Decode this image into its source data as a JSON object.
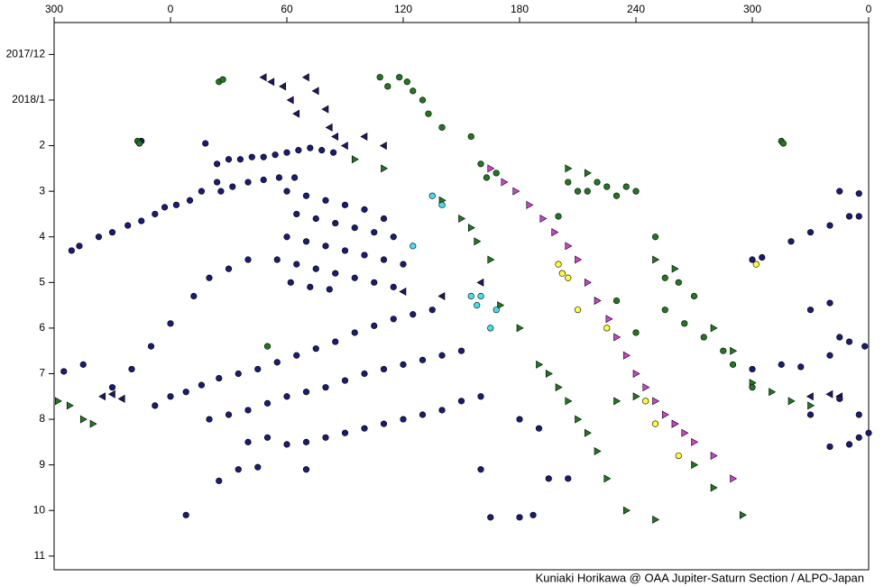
{
  "chart_data": {
    "type": "scatter",
    "credit": "Kuniaki Horikawa @ OAA Jupiter-Saturn Section / ALPO-Japan",
    "xlim": [
      -60,
      360
    ],
    "xticks": [
      {
        "value": -60,
        "label": "300"
      },
      0,
      60,
      120,
      180,
      240,
      300,
      {
        "value": 360,
        "label": "0"
      }
    ],
    "ylim": [
      -0.7,
      11.3
    ],
    "yticks": [
      {
        "value": 0,
        "label": "2017/12"
      },
      {
        "value": 1,
        "label": "2018/1"
      },
      2,
      3,
      4,
      5,
      6,
      7,
      8,
      9,
      10,
      11
    ],
    "y_inverted": true,
    "series": [
      {
        "color": "#1f7a1f",
        "marker": "triangle-right",
        "x": [
          -58,
          -52,
          -45,
          -40,
          95,
          110,
          140,
          150,
          155,
          158,
          165,
          170,
          180,
          190,
          195,
          200,
          205,
          210,
          215,
          220,
          225,
          235,
          250,
          260,
          270,
          280,
          295,
          205,
          215,
          250,
          260,
          280,
          290,
          300,
          310,
          320,
          330,
          230,
          240
        ],
        "values": [
          7.6,
          7.7,
          8.0,
          8.1,
          2.3,
          2.5,
          3.2,
          3.6,
          3.8,
          4.1,
          4.5,
          5.5,
          6.0,
          6.8,
          7.0,
          7.3,
          7.6,
          8.0,
          8.3,
          8.7,
          9.3,
          10.0,
          10.2,
          8.1,
          9.0,
          9.5,
          10.1,
          2.5,
          2.6,
          4.5,
          4.7,
          6.0,
          6.5,
          7.2,
          7.4,
          7.6,
          7.7,
          7.6,
          7.5
        ]
      },
      {
        "color": "#1a1a66",
        "marker": "triangle-left",
        "x": [
          48,
          52,
          58,
          62,
          65,
          70,
          75,
          80,
          82,
          85,
          90,
          100,
          110,
          -35,
          -30,
          -25,
          120,
          140,
          160,
          330,
          340,
          345
        ],
        "values": [
          0.5,
          0.6,
          0.7,
          1.0,
          1.3,
          0.5,
          0.8,
          1.2,
          1.6,
          1.8,
          2.0,
          1.8,
          2.0,
          7.5,
          7.45,
          7.55,
          5.2,
          5.3,
          5.0,
          7.5,
          7.45,
          7.5
        ]
      },
      {
        "color": "#1a1a7a",
        "marker": "circle",
        "x": [
          -51,
          -47,
          -37,
          -30,
          -22,
          -15,
          -8,
          -3,
          3,
          10,
          16,
          24,
          24,
          30,
          36,
          42,
          48,
          54,
          60,
          66,
          72,
          78,
          84,
          26,
          32,
          40,
          48,
          56,
          64,
          60,
          70,
          80,
          90,
          100,
          110,
          65,
          75,
          85,
          95,
          105,
          115,
          60,
          70,
          80,
          90,
          100,
          110,
          120,
          55,
          65,
          75,
          85,
          95,
          105,
          115,
          62,
          72,
          82,
          40,
          30,
          20,
          12,
          0,
          -10,
          -20,
          -30,
          -45,
          -55,
          -8,
          0,
          8,
          16,
          25,
          35,
          45,
          55,
          65,
          75,
          85,
          95,
          105,
          115,
          125,
          135,
          20,
          30,
          40,
          50,
          60,
          70,
          80,
          90,
          100,
          110,
          120,
          130,
          140,
          150,
          40,
          50,
          60,
          70,
          80,
          90,
          100,
          110,
          120,
          130,
          140,
          150,
          160,
          25,
          35,
          45,
          70,
          160,
          165,
          180,
          187,
          8,
          345,
          355,
          350,
          355,
          340,
          330,
          320,
          305,
          300,
          340,
          330,
          345,
          358,
          350,
          340,
          325,
          315,
          300,
          345,
          330,
          355,
          340,
          350,
          355,
          360,
          -15,
          18,
          180,
          190,
          195,
          205
        ],
        "values": [
          4.3,
          4.2,
          4.0,
          3.9,
          3.75,
          3.65,
          3.5,
          3.35,
          3.3,
          3.2,
          3.0,
          2.8,
          2.4,
          2.3,
          2.3,
          2.25,
          2.25,
          2.2,
          2.15,
          2.1,
          2.05,
          2.1,
          2.15,
          3.0,
          2.9,
          2.8,
          2.75,
          2.7,
          2.7,
          3.0,
          3.1,
          3.2,
          3.3,
          3.4,
          3.6,
          3.5,
          3.6,
          3.7,
          3.8,
          3.9,
          4.0,
          4.0,
          4.1,
          4.2,
          4.3,
          4.4,
          4.5,
          4.6,
          4.5,
          4.6,
          4.7,
          4.8,
          4.9,
          5.0,
          5.1,
          5.0,
          5.1,
          5.15,
          4.5,
          4.7,
          4.9,
          5.3,
          5.9,
          6.4,
          6.9,
          7.3,
          6.8,
          6.95,
          7.7,
          7.5,
          7.4,
          7.25,
          7.1,
          7.0,
          6.9,
          6.75,
          6.6,
          6.45,
          6.3,
          6.1,
          5.95,
          5.8,
          5.7,
          5.6,
          8.0,
          7.9,
          7.8,
          7.65,
          7.5,
          7.4,
          7.3,
          7.15,
          7.0,
          6.9,
          6.8,
          6.7,
          6.6,
          6.5,
          8.5,
          8.4,
          8.55,
          8.5,
          8.4,
          8.3,
          8.2,
          8.1,
          8.0,
          7.9,
          7.8,
          7.6,
          7.5,
          9.35,
          9.1,
          9.05,
          9.1,
          9.1,
          10.15,
          10.15,
          10.1,
          10.1,
          3.0,
          3.05,
          3.55,
          3.55,
          3.75,
          3.9,
          4.1,
          4.45,
          4.5,
          5.45,
          5.6,
          6.2,
          6.4,
          6.3,
          6.6,
          6.85,
          6.8,
          6.9,
          7.55,
          7.9,
          7.9,
          8.6,
          8.55,
          8.4,
          8.3,
          1.9,
          1.95,
          8.0,
          8.2,
          9.3,
          9.3
        ]
      },
      {
        "color": "#1f7a1f",
        "marker": "circle",
        "x": [
          25,
          27,
          -17,
          -16,
          108,
          112,
          118,
          122,
          125,
          130,
          133,
          140,
          155,
          160,
          163,
          168,
          205,
          210,
          215,
          220,
          225,
          230,
          235,
          240,
          200,
          250,
          255,
          262,
          270,
          255,
          265,
          275,
          285,
          290,
          300,
          240,
          50,
          230,
          315,
          316
        ],
        "values": [
          0.6,
          0.55,
          1.9,
          1.95,
          0.5,
          0.7,
          0.5,
          0.6,
          0.8,
          1.0,
          1.3,
          1.6,
          1.8,
          2.4,
          2.7,
          2.6,
          2.8,
          3.0,
          3.0,
          2.8,
          2.9,
          3.1,
          2.9,
          3.0,
          3.55,
          4.0,
          4.9,
          5.0,
          5.3,
          5.6,
          5.9,
          6.2,
          6.5,
          6.8,
          7.3,
          6.1,
          6.4,
          5.4,
          1.9,
          1.95
        ]
      },
      {
        "color": "#d040d0",
        "marker": "triangle-right",
        "x": [
          165,
          172,
          178,
          185,
          192,
          198,
          205,
          210,
          215,
          220,
          226,
          230,
          235,
          240,
          245,
          250,
          255,
          260,
          265,
          270,
          280,
          290
        ],
        "values": [
          2.5,
          2.8,
          3.0,
          3.3,
          3.6,
          3.9,
          4.2,
          4.5,
          5.0,
          5.4,
          5.8,
          6.2,
          6.6,
          7.0,
          7.3,
          7.6,
          7.9,
          8.1,
          8.3,
          8.5,
          8.8,
          9.3
        ]
      },
      {
        "color": "#40e0f0",
        "marker": "circle",
        "x": [
          135,
          140,
          125,
          155,
          160,
          158,
          168,
          165
        ],
        "values": [
          3.1,
          3.3,
          4.2,
          5.3,
          5.3,
          5.5,
          5.6,
          6.0
        ]
      },
      {
        "color": "#ffff33",
        "marker": "circle",
        "x": [
          200,
          202,
          205,
          210,
          225,
          245,
          250,
          262,
          302
        ],
        "values": [
          4.6,
          4.8,
          4.9,
          5.6,
          6.0,
          7.6,
          8.1,
          8.8,
          4.6
        ]
      }
    ]
  }
}
